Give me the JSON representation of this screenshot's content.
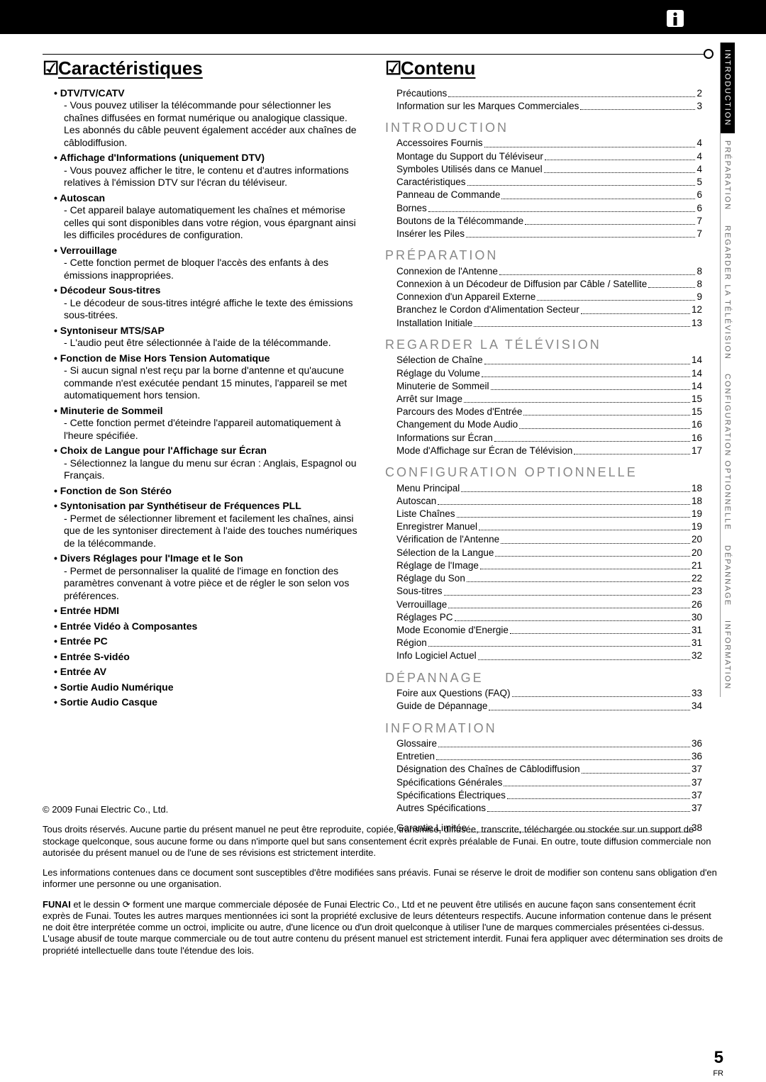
{
  "page_number": "5",
  "lang_abbr": "FR",
  "headings": {
    "features": "Caractéristiques",
    "contents": "Contenu"
  },
  "tabs": [
    {
      "label": "INTRODUCTION",
      "active": true
    },
    {
      "label": "PRÉPARATION",
      "active": false
    },
    {
      "label": "REGARDER LA TÉLÉVISION",
      "active": false
    },
    {
      "label": "CONFIGURATION OPTIONNELLE",
      "active": false
    },
    {
      "label": "DÉPANNAGE",
      "active": false
    },
    {
      "label": "INFORMATION",
      "active": false
    }
  ],
  "features": [
    {
      "title": "DTV/TV/CATV",
      "desc": "Vous pouvez utiliser la télécommande pour sélectionner les chaînes diffusées en format numérique ou analogique classique. Les abonnés du câble peuvent également accéder aux chaînes de câblodiffusion."
    },
    {
      "title": "Affichage d'Informations (uniquement DTV)",
      "desc": "Vous pouvez afficher le titre, le contenu et d'autres informations relatives à l'émission DTV sur l'écran du téléviseur."
    },
    {
      "title": "Autoscan",
      "desc": "Cet appareil balaye automatiquement les chaînes et mémorise celles qui sont disponibles dans votre région, vous épargnant ainsi les difficiles procédures de configuration."
    },
    {
      "title": "Verrouillage",
      "desc": "Cette fonction permet de bloquer l'accès des enfants à des émissions inappropriées."
    },
    {
      "title": "Décodeur Sous-titres",
      "desc": "Le décodeur de sous-titres intégré affiche le texte des émissions sous-titrées."
    },
    {
      "title": "Syntoniseur MTS/SAP",
      "desc": "L'audio peut être sélectionnée à l'aide de la télécommande."
    },
    {
      "title": "Fonction de Mise Hors Tension Automatique",
      "desc": "Si aucun signal n'est reçu par la borne d'antenne et qu'aucune commande n'est exécutée pendant 15 minutes, l'appareil se met automatiquement hors tension."
    },
    {
      "title": "Minuterie de Sommeil",
      "desc": "Cette fonction permet d'éteindre l'appareil automatiquement à l'heure spécifiée."
    },
    {
      "title": "Choix de Langue pour l'Affichage sur Écran",
      "desc": "Sélectionnez la langue du menu sur écran : Anglais, Espagnol ou Français."
    },
    {
      "title": "Fonction de Son Stéréo"
    },
    {
      "title": "Syntonisation par Synthétiseur de Fréquences PLL",
      "desc": "Permet de sélectionner librement et facilement les chaînes, ainsi que de les syntoniser directement à l'aide des touches numériques de la télécommande."
    },
    {
      "title": "Divers Réglages pour l'Image et le Son",
      "desc": "Permet de personnaliser la qualité de l'image en fonction des paramètres convenant à votre pièce et de régler le son selon vos préférences."
    },
    {
      "title": "Entrée HDMI"
    },
    {
      "title": "Entrée Vidéo à Composantes"
    },
    {
      "title": "Entrée PC"
    },
    {
      "title": "Entrée S-vidéo"
    },
    {
      "title": "Entrée AV"
    },
    {
      "title": "Sortie Audio Numérique"
    },
    {
      "title": "Sortie Audio Casque"
    }
  ],
  "toc_pre": [
    {
      "label": "Précautions",
      "page": "2"
    },
    {
      "label": "Information sur les Marques Commerciales",
      "page": "3"
    }
  ],
  "toc_sections": [
    {
      "title": "INTRODUCTION",
      "items": [
        {
          "label": "Accessoires Fournis",
          "page": "4"
        },
        {
          "label": "Montage du Support du Téléviseur",
          "page": "4"
        },
        {
          "label": "Symboles Utilisés dans ce Manuel",
          "page": "4"
        },
        {
          "label": "Caractéristiques",
          "page": "5"
        },
        {
          "label": "Panneau de Commande",
          "page": "6"
        },
        {
          "label": "Bornes",
          "page": "6"
        },
        {
          "label": "Boutons de la Télécommande",
          "page": "7"
        },
        {
          "label": "Insérer les Piles",
          "page": "7"
        }
      ]
    },
    {
      "title": "PRÉPARATION",
      "items": [
        {
          "label": "Connexion de l'Antenne",
          "page": "8"
        },
        {
          "label": "Connexion à un Décodeur de Diffusion par Câble / Satellite",
          "page": "8"
        },
        {
          "label": "Connexion d'un Appareil Externe",
          "page": "9"
        },
        {
          "label": "Branchez le Cordon d'Alimentation Secteur",
          "page": "12"
        },
        {
          "label": "Installation Initiale",
          "page": "13"
        }
      ]
    },
    {
      "title": "REGARDER LA TÉLÉVISION",
      "items": [
        {
          "label": "Sélection de Chaîne",
          "page": "14"
        },
        {
          "label": "Réglage du Volume",
          "page": "14"
        },
        {
          "label": "Minuterie de Sommeil",
          "page": "14"
        },
        {
          "label": "Arrêt sur Image",
          "page": "15"
        },
        {
          "label": "Parcours des Modes d'Entrée",
          "page": "15"
        },
        {
          "label": "Changement du Mode Audio",
          "page": "16"
        },
        {
          "label": "Informations sur Écran",
          "page": "16"
        },
        {
          "label": "Mode d'Affichage sur Écran de Télévision",
          "page": "17"
        }
      ]
    },
    {
      "title": "CONFIGURATION OPTIONNELLE",
      "items": [
        {
          "label": "Menu Principal",
          "page": "18"
        },
        {
          "label": "Autoscan",
          "page": "18"
        },
        {
          "label": "Liste Chaînes",
          "page": "19"
        },
        {
          "label": "Enregistrer Manuel",
          "page": "19"
        },
        {
          "label": "Vérification de l'Antenne",
          "page": "20"
        },
        {
          "label": "Sélection de la Langue",
          "page": "20"
        },
        {
          "label": "Réglage de l'Image",
          "page": "21"
        },
        {
          "label": "Réglage du Son",
          "page": "22"
        },
        {
          "label": "Sous-titres",
          "page": "23"
        },
        {
          "label": "Verrouillage",
          "page": "26"
        },
        {
          "label": "Réglages PC",
          "page": "30"
        },
        {
          "label": "Mode Economie d'Energie",
          "page": "31"
        },
        {
          "label": "Région",
          "page": "31"
        },
        {
          "label": "Info Logiciel Actuel",
          "page": "32"
        }
      ]
    },
    {
      "title": "DÉPANNAGE",
      "items": [
        {
          "label": "Foire aux Questions (FAQ)",
          "page": "33"
        },
        {
          "label": "Guide de Dépannage",
          "page": "34"
        }
      ]
    },
    {
      "title": "INFORMATION",
      "items": [
        {
          "label": "Glossaire",
          "page": "36"
        },
        {
          "label": "Entretien",
          "page": "36"
        },
        {
          "label": "Désignation des Chaînes de Câblodiffusion",
          "page": "37"
        },
        {
          "label": "Spécifications Générales",
          "page": "37"
        },
        {
          "label": "Spécifications Électriques",
          "page": "37"
        },
        {
          "label": "Autres Spécifications",
          "page": "37"
        }
      ]
    }
  ],
  "toc_post": [
    {
      "label": "Garantie Limitée",
      "page": "38"
    }
  ],
  "footer": {
    "copyright": "© 2009 Funai Electric Co., Ltd.",
    "p1": "Tous droits réservés. Aucune partie du présent manuel ne peut être reproduite, copiée, transmise, diffusée, transcrite, téléchargée ou stockée sur un support de stockage quelconque, sous aucune forme ou dans n'importe quel but sans consentement écrit exprès préalable de Funai. En outre, toute diffusion commerciale non autorisée du présent manuel ou de l'une de ses révisions est strictement interdite.",
    "p2": "Les informations contenues dans ce document sont susceptibles d'être modifiées sans préavis. Funai se réserve le droit de modifier son contenu sans obligation d'en informer une personne ou une organisation.",
    "p3_brand": "FUNAI",
    "p3_rest": " et le dessin ⟳ forment une marque commerciale déposée de Funai Electric Co., Ltd et ne peuvent être utilisés en aucune façon sans consentement écrit exprès de Funai. Toutes les autres marques mentionnées ici sont la propriété exclusive de leurs détenteurs respectifs. Aucune information contenue dans le présent ne doit être interprétée comme un octroi, implicite ou autre, d'une licence ou d'un droit quelconque à utiliser l'une de marques commerciales présentées ci-dessus. L'usage abusif de toute marque commerciale ou de tout autre contenu du présent manuel est strictement interdit. Funai fera appliquer avec détermination ses droits de propriété intellectuelle dans toute l'étendue des lois."
  }
}
